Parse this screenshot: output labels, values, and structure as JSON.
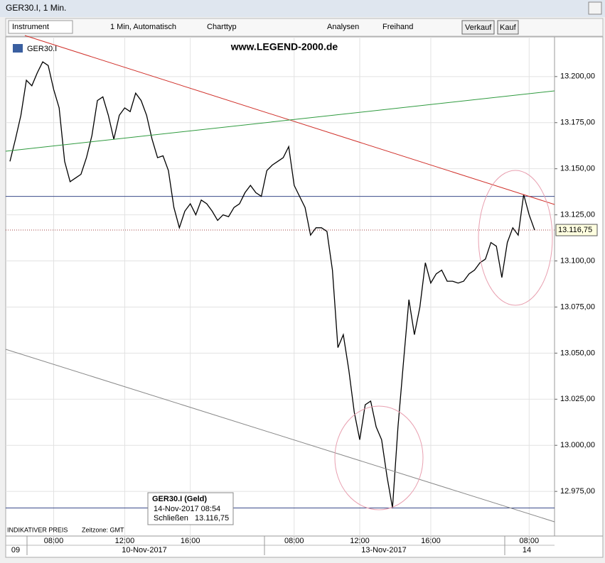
{
  "window": {
    "title": "GER30.I, 1 Min."
  },
  "toolbar": {
    "instrument": "Instrument",
    "interval": "1 Min,  Automatisch",
    "charttype": "Charttyp",
    "analysen": "Analysen",
    "freihand": "Freihand",
    "verkauf": "Verkauf",
    "kauf": "Kauf"
  },
  "chart_data": {
    "type": "line",
    "title": "www.LEGEND-2000.de",
    "symbol": "GER30.I",
    "categories": [
      null,
      null,
      null,
      null,
      null,
      null,
      null,
      null,
      "08:00",
      null,
      null,
      null,
      null,
      null,
      null,
      null,
      null,
      null,
      null,
      null,
      null,
      "12:00",
      null,
      null,
      null,
      null,
      null,
      null,
      null,
      null,
      null,
      null,
      null,
      "16:00",
      null,
      null,
      null,
      null,
      null,
      null,
      null,
      null,
      null,
      null,
      null,
      null,
      null,
      null,
      null,
      null,
      null,
      null,
      "08:00",
      null,
      null,
      null,
      null,
      null,
      null,
      null,
      null,
      null,
      null,
      null,
      "12:00",
      null,
      null,
      null,
      null,
      null,
      null,
      null,
      null,
      null,
      null,
      null,
      null,
      "16:00",
      null,
      null,
      null,
      null,
      null,
      null,
      null,
      null,
      null,
      null,
      null,
      null,
      null,
      null,
      null,
      null,
      null,
      "08:00",
      null
    ],
    "values": [
      13154,
      13166,
      13179,
      13198,
      13195,
      13202,
      13208,
      13206,
      13193,
      13183,
      13154,
      13143,
      13145,
      13147,
      13156,
      13168,
      13187,
      13189,
      13179,
      13166,
      13179,
      13183,
      13181,
      13191,
      13187,
      13179,
      13166,
      13156,
      13157,
      13149,
      13129,
      13118,
      13127,
      13131,
      13125,
      13133,
      13131,
      13127,
      13122,
      13125,
      13124,
      13129,
      13131,
      13137,
      13141,
      13137,
      13135,
      13149,
      13152,
      13154,
      13156,
      13162,
      13141,
      13135,
      13129,
      13114,
      13118,
      13118,
      13116,
      13095,
      13053,
      13060,
      13041,
      13018,
      13003,
      13022,
      13024,
      13010,
      13003,
      12983,
      12966,
      13010,
      13045,
      13079,
      13060,
      13075,
      13099,
      13088,
      13093,
      13095,
      13089,
      13089,
      13088,
      13089,
      13093,
      13095,
      13099,
      13101,
      13110,
      13108,
      13091,
      13110,
      13118,
      13114,
      13136,
      13125,
      13116.75
    ],
    "color": "#000000",
    "ylim": [
      12950.8,
      13221.5
    ],
    "yticks": [
      {
        "value": 12975,
        "label": "12.975,00"
      },
      {
        "value": 13000,
        "label": "13.000,00"
      },
      {
        "value": 13025,
        "label": "13.025,00"
      },
      {
        "value": 13050,
        "label": "13.050,00"
      },
      {
        "value": 13075,
        "label": "13.075,00"
      },
      {
        "value": 13100,
        "label": "13.100,00"
      },
      {
        "value": 13125,
        "label": "13.125,00"
      },
      {
        "value": 13150,
        "label": "13.150,00"
      },
      {
        "value": 13175,
        "label": "13.175,00"
      },
      {
        "value": 13200,
        "label": "13.200,00"
      }
    ],
    "levels": [
      13135,
      12966
    ],
    "last_price": {
      "value": 13116.75,
      "label": "13.116,75"
    },
    "date_labels": [
      "09",
      "10-Nov-2017",
      "13-Nov-2017",
      "14"
    ],
    "grid": true
  },
  "tooltip": {
    "title": "GER30.I (Geld)",
    "date": "14-Nov-2017 08:54",
    "close_label": "Schließen"
  },
  "footer": {
    "price_note": "INDIKATIVER PREIS",
    "timezone": "Zeitzone: GMT"
  }
}
